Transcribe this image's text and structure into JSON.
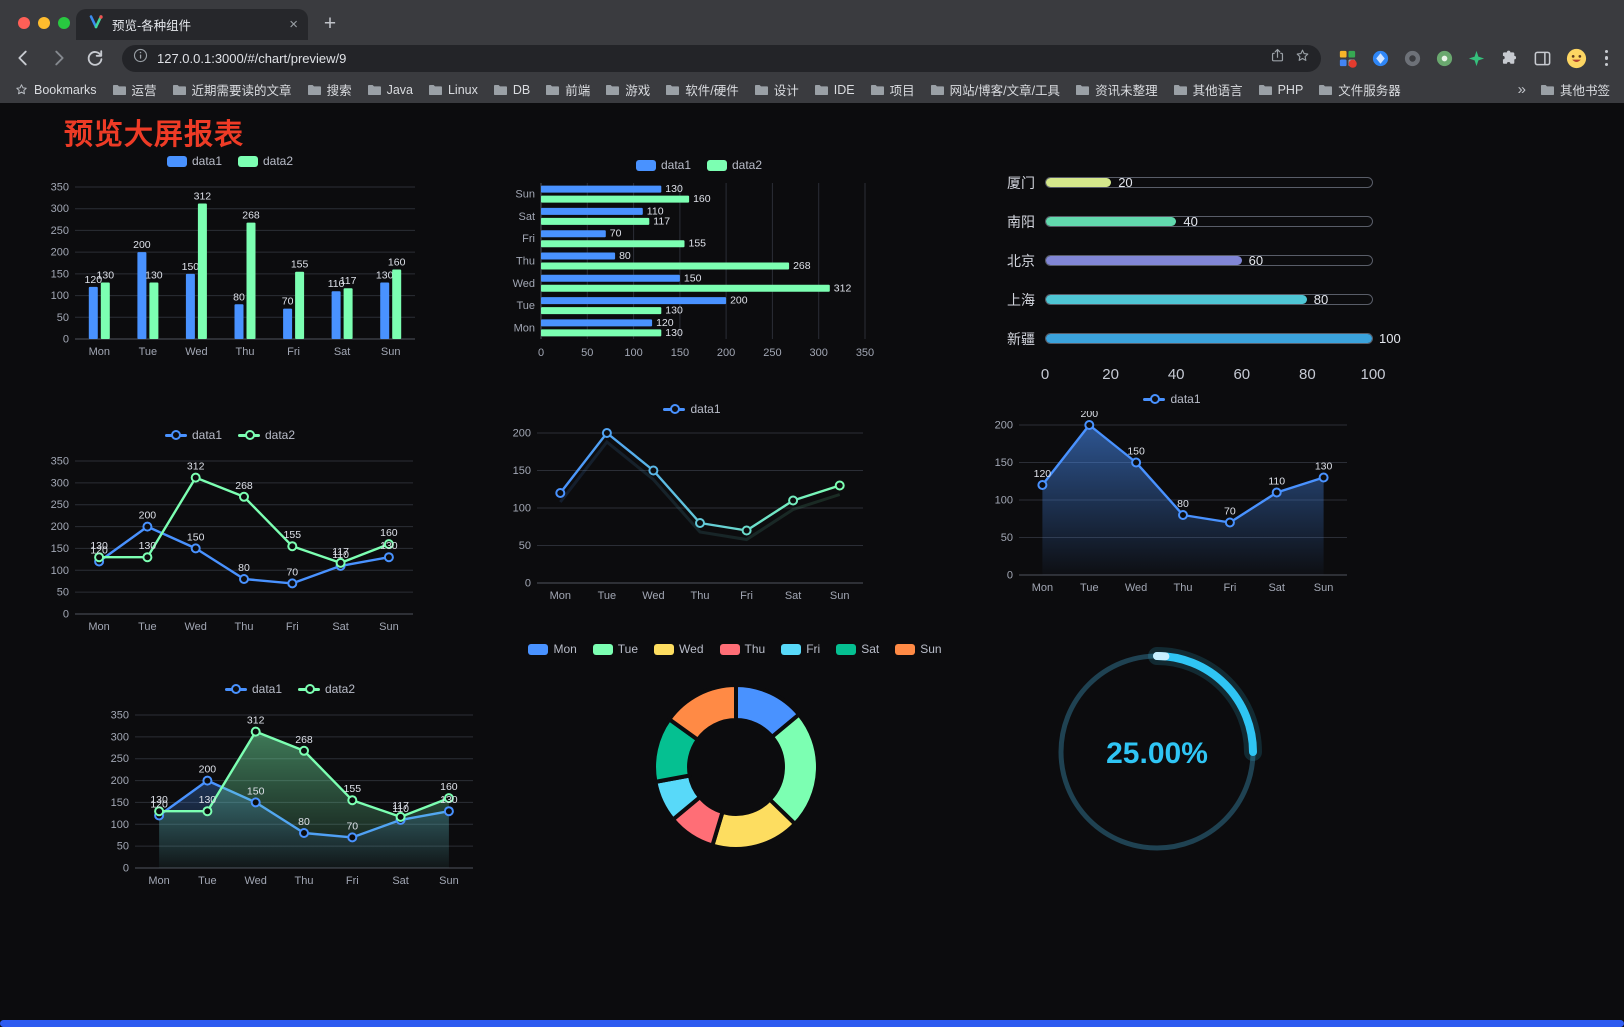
{
  "browser": {
    "tab_title": "预览-各种组件",
    "url": "127.0.0.1:3000/#/chart/preview/9",
    "new_tab_glyph": "+",
    "tab_close_glyph": "×",
    "traffic_light_colors": {
      "close": "#ff5f57",
      "minimize": "#febc2e",
      "zoom": "#28c840"
    },
    "bookmarks_bar": {
      "bookmarks_label": "Bookmarks",
      "items": [
        "运营",
        "近期需要读的文章",
        "搜索",
        "Java",
        "Linux",
        "DB",
        "前端",
        "游戏",
        "软件/硬件",
        "设计",
        "IDE",
        "项目",
        "网站/博客/文章/工具",
        "资讯未整理",
        "其他语言",
        "PHP",
        "文件服务器"
      ],
      "overflow_chevron": "»",
      "other_bookmarks_label": "其他书签"
    }
  },
  "page": {
    "title": "预览大屏报表",
    "title_color": "#ee3b26",
    "background": "#0c0c0e",
    "bottom_bar_color": "#2e5bf0"
  },
  "chart_data": [
    {
      "type": "bar",
      "categories": [
        "Mon",
        "Tue",
        "Wed",
        "Thu",
        "Fri",
        "Sat",
        "Sun"
      ],
      "series": [
        {
          "name": "data1",
          "color": "#4992ff",
          "values": [
            120,
            200,
            150,
            80,
            70,
            110,
            130
          ]
        },
        {
          "name": "data2",
          "color": "#7cffb2",
          "values": [
            130,
            130,
            312,
            268,
            155,
            117,
            160
          ]
        }
      ],
      "ylim": [
        0,
        350
      ],
      "yticks": [
        0,
        50,
        100,
        150,
        200,
        250,
        300,
        350
      ],
      "legend_position": "top",
      "value_labels": true,
      "grid": true
    },
    {
      "type": "hbar",
      "categories": [
        "Mon",
        "Tue",
        "Wed",
        "Thu",
        "Fri",
        "Sat",
        "Sun"
      ],
      "y_axis_order": "Sun at top, Mon at bottom",
      "series": [
        {
          "name": "data1",
          "color": "#4992ff",
          "values": [
            120,
            200,
            150,
            80,
            70,
            110,
            130
          ]
        },
        {
          "name": "data2",
          "color": "#7cffb2",
          "values": [
            130,
            130,
            312,
            268,
            155,
            117,
            160
          ]
        }
      ],
      "xlim": [
        0,
        350
      ],
      "xticks": [
        0,
        50,
        100,
        150,
        200,
        250,
        300,
        350
      ],
      "legend_position": "top",
      "value_labels": true,
      "grid": true
    },
    {
      "type": "progress",
      "max": 100,
      "items": [
        {
          "label": "厦门",
          "value": 20,
          "color": "#d5e88b"
        },
        {
          "label": "南阳",
          "value": 40,
          "color": "#62d9ad"
        },
        {
          "label": "北京",
          "value": 60,
          "color": "#8186d5"
        },
        {
          "label": "上海",
          "value": 80,
          "color": "#4fc6d4"
        },
        {
          "label": "新疆",
          "value": 100,
          "color": "#3ba3dc"
        }
      ],
      "xticks": [
        0,
        20,
        40,
        60,
        80,
        100
      ]
    },
    {
      "type": "line",
      "categories": [
        "Mon",
        "Tue",
        "Wed",
        "Thu",
        "Fri",
        "Sat",
        "Sun"
      ],
      "series": [
        {
          "name": "data1",
          "color": "#4992ff",
          "values": [
            120,
            200,
            150,
            80,
            70,
            110,
            130
          ]
        },
        {
          "name": "data2",
          "color": "#7cffb2",
          "values": [
            130,
            130,
            312,
            268,
            155,
            117,
            160
          ]
        }
      ],
      "ylim": [
        0,
        350
      ],
      "yticks": [
        0,
        50,
        100,
        150,
        200,
        250,
        300,
        350
      ],
      "legend_position": "top",
      "value_labels": true,
      "symbols": true,
      "grid": true
    },
    {
      "type": "line",
      "categories": [
        "Mon",
        "Tue",
        "Wed",
        "Thu",
        "Fri",
        "Sat",
        "Sun"
      ],
      "series": [
        {
          "name": "data1",
          "color_gradient": [
            "#4992ff",
            "#7cffb2"
          ],
          "values": [
            120,
            200,
            150,
            80,
            70,
            110,
            130
          ]
        }
      ],
      "ylim": [
        0,
        200
      ],
      "yticks": [
        0,
        50,
        100,
        150,
        200
      ],
      "legend_position": "top",
      "value_labels": false,
      "symbols": true,
      "trail": true,
      "grid": true
    },
    {
      "type": "area",
      "categories": [
        "Mon",
        "Tue",
        "Wed",
        "Thu",
        "Fri",
        "Sat",
        "Sun"
      ],
      "series": [
        {
          "name": "data1",
          "color": "#4992ff",
          "area": [
            "rgba(73,146,255,0.55)",
            "rgba(73,146,255,0.02)"
          ],
          "values": [
            120,
            200,
            150,
            80,
            70,
            110,
            130
          ]
        }
      ],
      "ylim": [
        0,
        200
      ],
      "yticks": [
        0,
        50,
        100,
        150,
        200
      ],
      "legend_position": "top",
      "value_labels": true,
      "symbols": true,
      "grid": true
    },
    {
      "type": "line-area",
      "categories": [
        "Mon",
        "Tue",
        "Wed",
        "Thu",
        "Fri",
        "Sat",
        "Sun"
      ],
      "series": [
        {
          "name": "data1",
          "color": "#4992ff",
          "area": [
            "rgba(73,146,255,0.30)",
            "rgba(73,146,255,0.02)"
          ],
          "values": [
            120,
            200,
            150,
            80,
            70,
            110,
            130
          ]
        },
        {
          "name": "data2",
          "color": "#7cffb2",
          "area": [
            "rgba(124,255,178,0.45)",
            "rgba(124,255,178,0.03)"
          ],
          "values": [
            130,
            130,
            312,
            268,
            155,
            117,
            160
          ]
        }
      ],
      "ylim": [
        0,
        350
      ],
      "yticks": [
        0,
        50,
        100,
        150,
        200,
        250,
        300,
        350
      ],
      "legend_position": "top",
      "value_labels": true,
      "symbols": true,
      "grid": true
    },
    {
      "type": "pie",
      "donut": true,
      "categories": [
        "Mon",
        "Tue",
        "Wed",
        "Thu",
        "Fri",
        "Sat",
        "Sun"
      ],
      "values": [
        120,
        200,
        150,
        80,
        70,
        110,
        130
      ],
      "colors": [
        "#4992ff",
        "#7cffb2",
        "#fddd60",
        "#ff6e76",
        "#58d9f9",
        "#05c091",
        "#ff8a45"
      ],
      "legend_position": "top"
    },
    {
      "type": "gauge",
      "value": 25,
      "label": "25.00%",
      "color": "#2fc5f4",
      "track_color": "#1f4252"
    }
  ]
}
